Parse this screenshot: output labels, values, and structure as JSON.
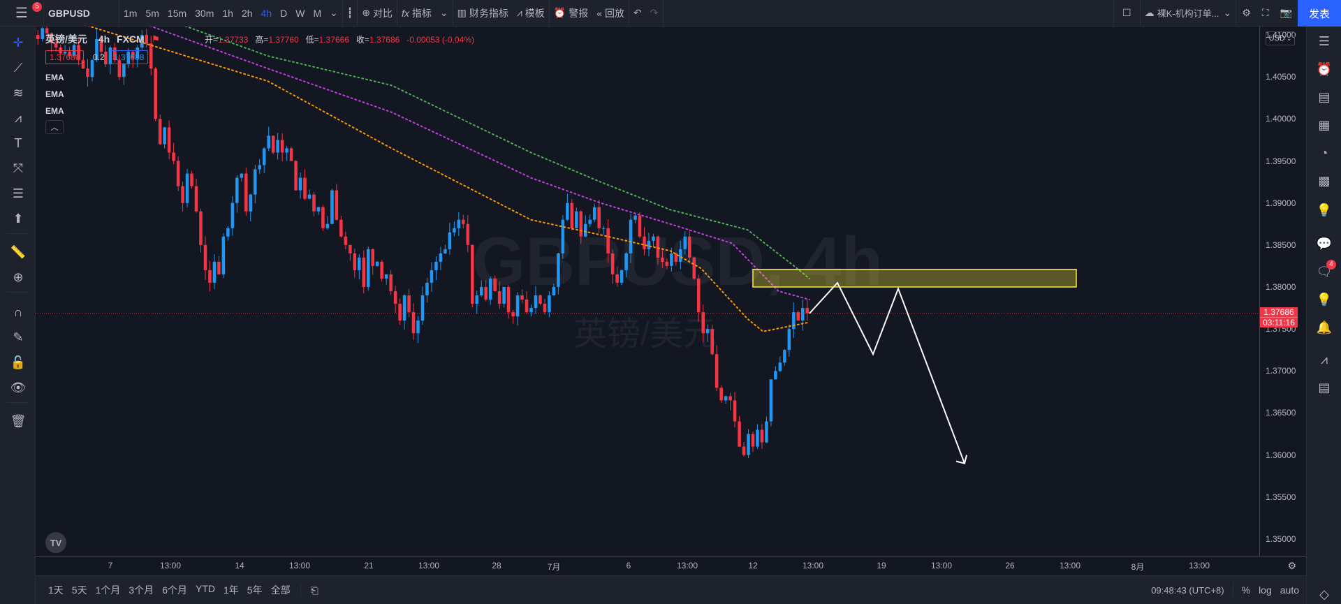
{
  "topbar": {
    "menu_badge": "5",
    "symbol": "GBPUSD",
    "timeframes": [
      "1m",
      "5m",
      "15m",
      "30m",
      "1h",
      "2h",
      "4h",
      "D",
      "W",
      "M"
    ],
    "active_timeframe": "4h",
    "compare": "对比",
    "indicators": "指标",
    "financials": "财务指标",
    "templates": "模板",
    "alert": "警报",
    "replay": "回放",
    "layout_name": "裸K-机构订单...",
    "publish": "发表"
  },
  "legend": {
    "title": "英镑/美元",
    "interval": "4h",
    "exchange": "FXCM",
    "open_label": "开=",
    "open": "1.37733",
    "high_label": "高=",
    "high": "1.37760",
    "low_label": "低=",
    "low": "1.37666",
    "close_label": "收=",
    "close": "1.37686",
    "change": "-0.00053 (-0.04%)",
    "bid": "1.37686",
    "spread": "0.2",
    "ask": "1.37688",
    "ema_labels": [
      "EMA",
      "EMA",
      "EMA"
    ]
  },
  "watermark": {
    "symbol": "GBPUSD, 4h",
    "name": "英镑/美元"
  },
  "price_axis": {
    "currency": "USD",
    "ticks": [
      "1.41000",
      "1.40500",
      "1.40000",
      "1.39500",
      "1.39000",
      "1.38500",
      "1.38000",
      "1.37500",
      "1.37000",
      "1.36500",
      "1.36000",
      "1.35500",
      "1.35000"
    ],
    "current_price": "1.37686",
    "countdown": "03:11:16"
  },
  "time_axis": {
    "ticks": [
      "7",
      "13:00",
      "14",
      "13:00",
      "21",
      "13:00",
      "28",
      "7月",
      "6",
      "13:00",
      "12",
      "13:00",
      "19",
      "13:00",
      "26",
      "13:00",
      "8月",
      "13:00"
    ]
  },
  "bottombar": {
    "ranges": [
      "1天",
      "5天",
      "1个月",
      "3个月",
      "6个月",
      "YTD",
      "1年",
      "5年",
      "全部"
    ],
    "clock": "09:48:43 (UTC+8)",
    "percent": "%",
    "log": "log",
    "auto": "auto"
  },
  "rightbar": {
    "notif_badge": "4"
  },
  "colors": {
    "up": "#2196f3",
    "down": "#f23645",
    "ema_fast": "#ff9800",
    "ema_mid": "#c040e0",
    "ema_slow": "#4caf50",
    "zone": "#ffeb3b",
    "accent": "#2962ff"
  },
  "chart_data": {
    "type": "candlestick",
    "symbol": "GBPUSD",
    "interval": "4h",
    "ylim": [
      1.348,
      1.411
    ],
    "y_ticks": [
      1.41,
      1.405,
      1.4,
      1.395,
      1.39,
      1.385,
      1.38,
      1.375,
      1.37,
      1.365,
      1.36,
      1.355,
      1.35
    ],
    "close_path": [
      1.4095,
      1.4108,
      1.4102,
      1.409,
      1.4085,
      1.4078,
      1.408,
      1.4075,
      1.4088,
      1.407,
      1.406,
      1.405,
      1.407,
      1.4095,
      1.408,
      1.4065,
      1.4085,
      1.407,
      1.405,
      1.4065,
      1.408,
      1.4072,
      1.4085,
      1.41,
      1.409,
      1.406,
      1.4,
      1.397,
      1.399,
      1.396,
      1.395,
      1.392,
      1.39,
      1.3935,
      1.392,
      1.389,
      1.385,
      1.382,
      1.3805,
      1.383,
      1.3815,
      1.386,
      1.387,
      1.39,
      1.393,
      1.3935,
      1.389,
      1.391,
      1.394,
      1.3945,
      1.3965,
      1.398,
      1.396,
      1.3975,
      1.396,
      1.3965,
      1.395,
      1.3915,
      1.393,
      1.3905,
      1.391,
      1.389,
      1.3895,
      1.387,
      1.3875,
      1.3915,
      1.388,
      1.386,
      1.385,
      1.384,
      1.382,
      1.3835,
      1.38,
      1.3845,
      1.3825,
      1.383,
      1.381,
      1.3815,
      1.3795,
      1.378,
      1.376,
      1.379,
      1.377,
      1.3745,
      1.376,
      1.379,
      1.3805,
      1.382,
      1.383,
      1.384,
      1.3845,
      1.3865,
      1.387,
      1.388,
      1.3875,
      1.385,
      1.378,
      1.379,
      1.38,
      1.3785,
      1.381,
      1.3795,
      1.378,
      1.38,
      1.377,
      1.3765,
      1.379,
      1.3785,
      1.377,
      1.3775,
      1.379,
      1.378,
      1.377,
      1.379,
      1.38,
      1.384,
      1.388,
      1.39,
      1.387,
      1.389,
      1.386,
      1.3875,
      1.388,
      1.3895,
      1.387,
      1.387,
      1.384,
      1.3815,
      1.3805,
      1.382,
      1.384,
      1.388,
      1.3885,
      1.386,
      1.3845,
      1.3855,
      1.386,
      1.3835,
      1.383,
      1.3825,
      1.384,
      1.383,
      1.3845,
      1.386,
      1.3835,
      1.381,
      1.377,
      1.3745,
      1.375,
      1.372,
      1.368,
      1.3665,
      1.367,
      1.3665,
      1.364,
      1.361,
      1.36,
      1.3625,
      1.361,
      1.363,
      1.3615,
      1.364,
      1.369,
      1.37,
      1.371,
      1.3725,
      1.375,
      1.377,
      1.376,
      1.3775,
      1.37686
    ],
    "ema_fast_path": [
      [
        0,
        1.413
      ],
      [
        0.3,
        1.4045
      ],
      [
        0.46,
        1.3965
      ],
      [
        0.64,
        1.388
      ],
      [
        0.73,
        1.3862
      ],
      [
        0.82,
        1.3843
      ],
      [
        0.86,
        1.3822
      ],
      [
        0.92,
        1.3762
      ],
      [
        0.94,
        1.3747
      ],
      [
        1.0,
        1.3758
      ]
    ],
    "ema_mid_path": [
      [
        0,
        1.416
      ],
      [
        0.3,
        1.406
      ],
      [
        0.46,
        1.4008
      ],
      [
        0.64,
        1.393
      ],
      [
        0.73,
        1.39
      ],
      [
        0.82,
        1.3875
      ],
      [
        0.9,
        1.3852
      ],
      [
        0.96,
        1.3795
      ],
      [
        1.0,
        1.3785
      ]
    ],
    "ema_slow_path": [
      [
        0,
        1.4175
      ],
      [
        0.3,
        1.4075
      ],
      [
        0.46,
        1.404
      ],
      [
        0.64,
        1.396
      ],
      [
        0.73,
        1.3925
      ],
      [
        0.82,
        1.3892
      ],
      [
        0.92,
        1.3868
      ],
      [
        0.98,
        1.3825
      ],
      [
        1.0,
        1.381
      ]
    ],
    "zone": {
      "top": 1.3821,
      "bottom": 1.38
    },
    "projection": [
      1.37686,
      1.3805,
      1.372,
      1.3798,
      1.359
    ],
    "current_price": 1.37686
  }
}
